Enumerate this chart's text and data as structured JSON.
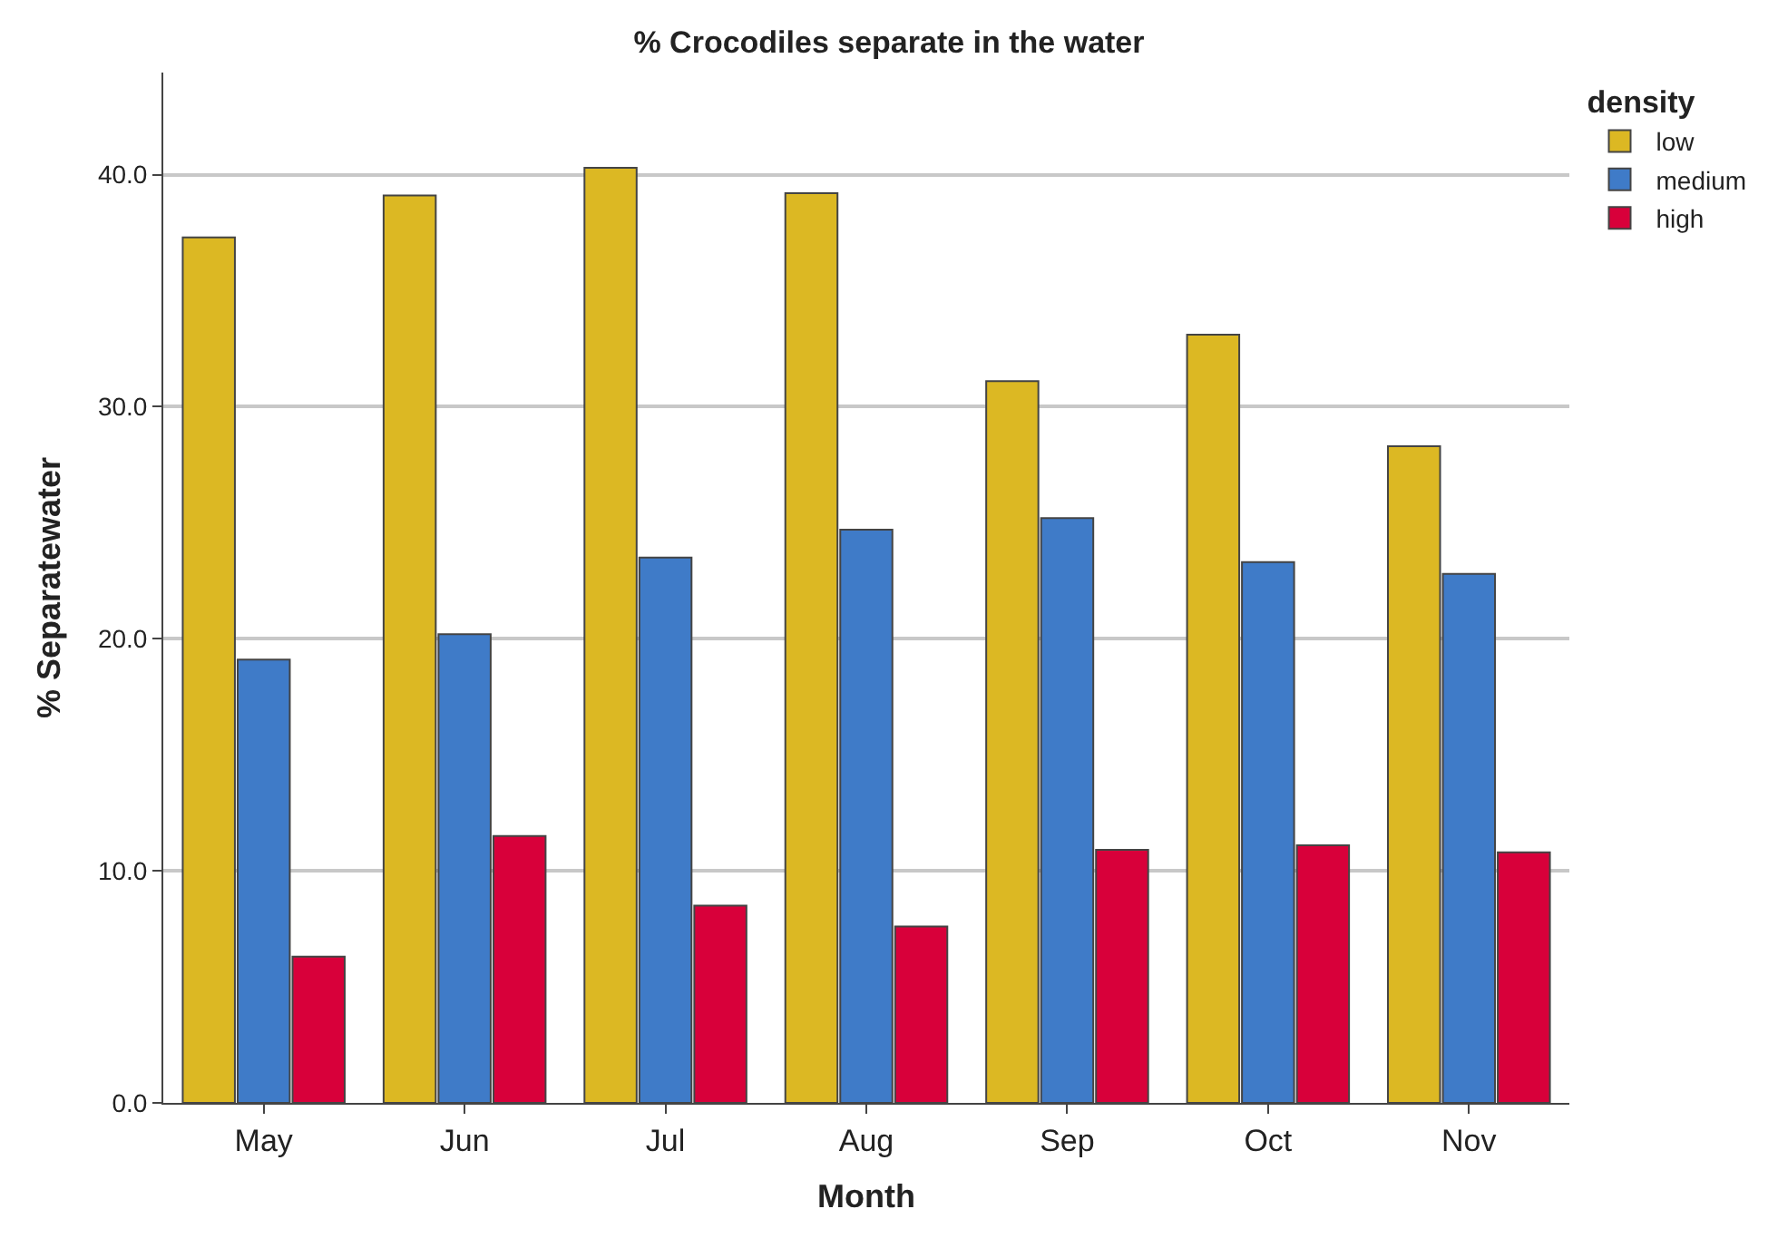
{
  "chart_data": {
    "type": "bar",
    "title": "% Crocodiles separate in the water",
    "xlabel": "Month",
    "ylabel": "% Separatewater",
    "legend_title": "density",
    "categories": [
      "May",
      "Jun",
      "Jul",
      "Aug",
      "Sep",
      "Oct",
      "Nov"
    ],
    "series": [
      {
        "name": "low",
        "color": "#dcb823",
        "values": [
          37.3,
          39.1,
          40.3,
          39.2,
          31.1,
          33.1,
          28.3
        ]
      },
      {
        "name": "medium",
        "color": "#3f7bc8",
        "values": [
          19.1,
          20.2,
          23.5,
          24.7,
          25.2,
          23.3,
          22.8
        ]
      },
      {
        "name": "high",
        "color": "#d8003a",
        "values": [
          6.3,
          11.5,
          8.5,
          7.6,
          10.9,
          11.1,
          10.8
        ]
      }
    ],
    "ylim": [
      0,
      44.4
    ],
    "yticks": [
      {
        "value": 0,
        "label": "0.0"
      },
      {
        "value": 10,
        "label": "10.0"
      },
      {
        "value": 20,
        "label": "20.0"
      },
      {
        "value": 30,
        "label": "30.0"
      },
      {
        "value": 40,
        "label": "40.0"
      }
    ],
    "grid": "y",
    "legend": "top right"
  }
}
